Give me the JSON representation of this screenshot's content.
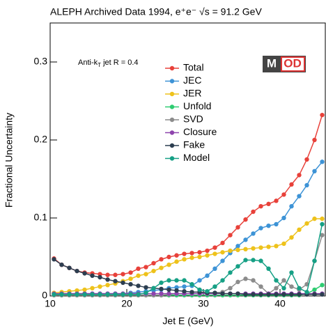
{
  "chart_data": {
    "type": "line",
    "title": "ALEPH Archived Data 1994, e⁺e⁻ √s = 91.2 GeV",
    "annotation": [
      "Anti-k",
      "T",
      " jet R = 0.4"
    ],
    "logo": [
      "M",
      "OD"
    ],
    "xlabel": "Jet E (GeV)",
    "ylabel": "Fractional Uncertainty",
    "xlim": [
      10,
      46
    ],
    "ylim": [
      0,
      0.35
    ],
    "xticks": [
      10,
      20,
      30,
      40
    ],
    "yticks": [
      0,
      0.1,
      0.2,
      0.3
    ],
    "x": [
      10.5,
      11.5,
      12.5,
      13.5,
      14.5,
      15.5,
      16.5,
      17.5,
      18.5,
      19.5,
      20.5,
      21.5,
      22.5,
      23.5,
      24.5,
      25.5,
      26.5,
      27.5,
      28.5,
      29.5,
      30.5,
      31.5,
      32.5,
      33.5,
      34.5,
      35.5,
      36.5,
      37.5,
      38.5,
      39.5,
      40.5,
      41.5,
      42.5,
      43.5,
      44.5,
      45.5
    ],
    "series": [
      {
        "name": "Total",
        "color": "#e8413a",
        "values": [
          0.048,
          0.04,
          0.036,
          0.032,
          0.03,
          0.029,
          0.028,
          0.027,
          0.027,
          0.028,
          0.03,
          0.035,
          0.037,
          0.042,
          0.047,
          0.05,
          0.052,
          0.054,
          0.055,
          0.056,
          0.058,
          0.062,
          0.068,
          0.078,
          0.088,
          0.098,
          0.108,
          0.115,
          0.118,
          0.122,
          0.13,
          0.143,
          0.155,
          0.175,
          0.2,
          0.232
        ]
      },
      {
        "name": "JEC",
        "color": "#3d93d6",
        "values": [
          0.003,
          0.003,
          0.003,
          0.003,
          0.003,
          0.003,
          0.003,
          0.003,
          0.003,
          0.003,
          0.004,
          0.005,
          0.006,
          0.007,
          0.008,
          0.01,
          0.011,
          0.012,
          0.013,
          0.02,
          0.026,
          0.035,
          0.045,
          0.055,
          0.064,
          0.072,
          0.08,
          0.087,
          0.09,
          0.092,
          0.1,
          0.115,
          0.128,
          0.142,
          0.16,
          0.172
        ]
      },
      {
        "name": "JER",
        "color": "#eec21b",
        "values": [
          0.004,
          0.005,
          0.006,
          0.007,
          0.008,
          0.01,
          0.012,
          0.014,
          0.016,
          0.019,
          0.022,
          0.026,
          0.028,
          0.032,
          0.036,
          0.04,
          0.044,
          0.047,
          0.049,
          0.05,
          0.052,
          0.054,
          0.056,
          0.058,
          0.059,
          0.06,
          0.061,
          0.062,
          0.063,
          0.064,
          0.067,
          0.075,
          0.085,
          0.093,
          0.099,
          0.099
        ]
      },
      {
        "name": "Unfold",
        "color": "#2ecc71",
        "values": [
          0.001,
          0.001,
          0.001,
          0.001,
          0.001,
          0.001,
          0.001,
          0.001,
          0.001,
          0.001,
          0.001,
          0.001,
          0.001,
          0.001,
          0.001,
          0.001,
          0.001,
          0.001,
          0.001,
          0.001,
          0.001,
          0.001,
          0.001,
          0.001,
          0.001,
          0.001,
          0.001,
          0.001,
          0.001,
          0.001,
          0.001,
          0.001,
          0.001,
          0.003,
          0.008,
          0.014
        ]
      },
      {
        "name": "SVD",
        "color": "#8c8c8c",
        "values": [
          0.001,
          0.001,
          0.001,
          0.001,
          0.001,
          0.001,
          0.001,
          0.001,
          0.001,
          0.001,
          0.001,
          0.001,
          0.001,
          0.001,
          0.001,
          0.002,
          0.003,
          0.003,
          0.003,
          0.003,
          0.004,
          0.004,
          0.005,
          0.01,
          0.018,
          0.022,
          0.02,
          0.012,
          0.003,
          0.01,
          0.02,
          0.012,
          0.008,
          0.015,
          0.045,
          0.078
        ]
      },
      {
        "name": "Closure",
        "color": "#8e44ad",
        "values": [
          0.003,
          0.003,
          0.003,
          0.003,
          0.003,
          0.003,
          0.003,
          0.003,
          0.003,
          0.003,
          0.003,
          0.003,
          0.003,
          0.003,
          0.003,
          0.003,
          0.003,
          0.003,
          0.003,
          0.003,
          0.003,
          0.003,
          0.003,
          0.003,
          0.003,
          0.003,
          0.003,
          0.003,
          0.003,
          0.003,
          0.003,
          0.003,
          0.003,
          0.003,
          0.003,
          0.003
        ]
      },
      {
        "name": "Fake",
        "color": "#2c3e50",
        "values": [
          0.047,
          0.04,
          0.036,
          0.032,
          0.029,
          0.026,
          0.024,
          0.021,
          0.019,
          0.017,
          0.015,
          0.013,
          0.011,
          0.01,
          0.009,
          0.008,
          0.007,
          0.006,
          0.005,
          0.005,
          0.004,
          0.004,
          0.003,
          0.003,
          0.003,
          0.002,
          0.002,
          0.002,
          0.002,
          0.002,
          0.002,
          0.002,
          0.002,
          0.002,
          0.002,
          0.002
        ]
      },
      {
        "name": "Model",
        "color": "#16a085",
        "values": [
          0.002,
          0.002,
          0.002,
          0.002,
          0.002,
          0.002,
          0.002,
          0.002,
          0.002,
          0.002,
          0.002,
          0.002,
          0.004,
          0.01,
          0.017,
          0.02,
          0.02,
          0.02,
          0.015,
          0.008,
          0.006,
          0.012,
          0.02,
          0.03,
          0.038,
          0.046,
          0.046,
          0.045,
          0.035,
          0.02,
          0.01,
          0.03,
          0.01,
          0.005,
          0.045,
          0.092
        ]
      }
    ]
  }
}
